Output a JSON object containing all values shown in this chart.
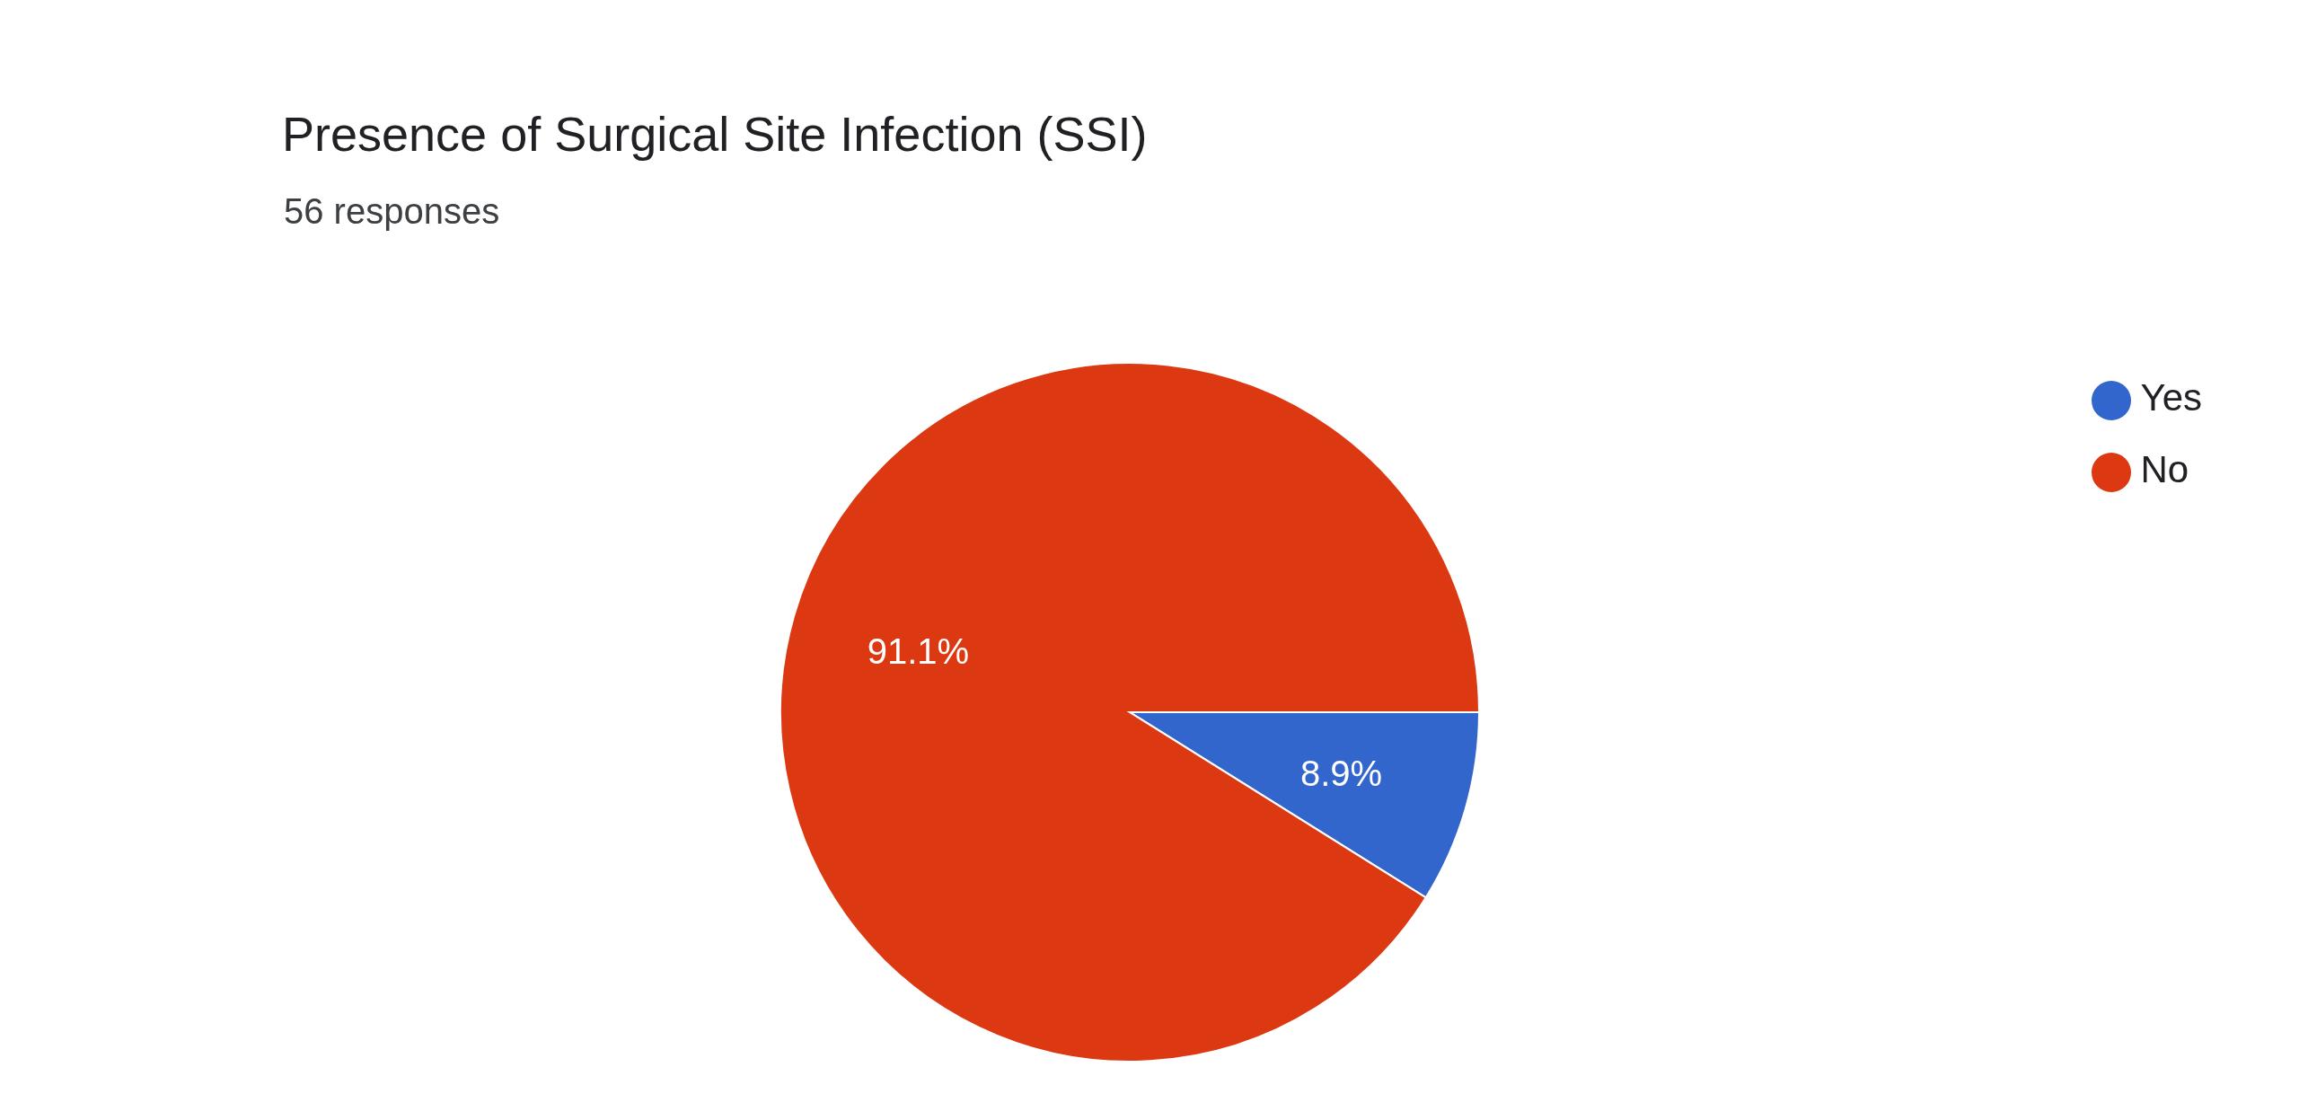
{
  "chart_data": {
    "type": "pie",
    "title": "Presence of Surgical Site Infection (SSI)",
    "subtitle": "56 responses",
    "categories": [
      "Yes",
      "No"
    ],
    "values": [
      8.9,
      91.1
    ],
    "colors": [
      "#3366cc",
      "#dc3912"
    ],
    "value_labels": [
      "8.9%",
      "91.1%"
    ],
    "legend": "top right"
  }
}
